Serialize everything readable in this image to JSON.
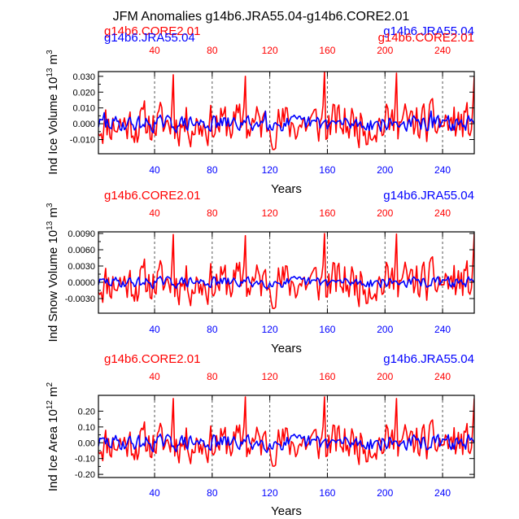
{
  "figure_title": "JFM Anomalies g14b6.JRA55.04-g14b6.CORE2.01",
  "colors": {
    "core": "#ff0000",
    "jra": "#0000ff",
    "axis": "#000000"
  },
  "chart_data": [
    {
      "type": "line",
      "ylabel": "Ind Ice Volume 10^13 m^3",
      "ylabel_parts": {
        "main": "Ind Ice Volume 10",
        "exp1": "13",
        "mid": " m",
        "exp2": "3"
      },
      "xlabel": "Years",
      "xlim": [
        1,
        262
      ],
      "ylim": [
        -0.019,
        0.033
      ],
      "yticks": [
        0.03,
        0.02,
        0.01,
        0.0,
        -0.01
      ],
      "ytick_labels": [
        "0.030",
        "0.020",
        "0.010",
        "0.000",
        "-0.010"
      ],
      "xticks_top": [
        40,
        80,
        120,
        160,
        200,
        240
      ],
      "xticks_top_labels": [
        "40",
        "80",
        "120",
        "160",
        "200",
        "240"
      ],
      "xticks_bottom": [
        40,
        80,
        120,
        160,
        200,
        240
      ],
      "xticks_bottom_labels": [
        "40",
        "80",
        "120",
        "160",
        "200",
        "240"
      ],
      "legend_left": [
        "g14b6.CORE2.01",
        "g14b6.JRA55.04"
      ],
      "legend_right": [
        "g14b6.JRA55.04",
        "g14b6.CORE2.01"
      ],
      "dashed_verticals": [
        40,
        80,
        120,
        160,
        200,
        240
      ],
      "series": [
        {
          "name": "g14b6.CORE2.01",
          "color": "#ff0000",
          "start": 1,
          "end": 262,
          "amplitude": 0.022,
          "seed": 11,
          "peaks": [
            [
              53,
              0.031
            ],
            [
              103,
              0.03
            ],
            [
              158,
              0.033
            ],
            [
              208,
              0.032
            ],
            [
              262,
              0.03
            ]
          ]
        },
        {
          "name": "g14b6.JRA55.04",
          "color": "#0000ff",
          "start": 1,
          "end": 262,
          "amplitude": 0.008,
          "seed": 29,
          "peaks": [
            [
              5,
              0.007
            ],
            [
              117,
              0.008
            ],
            [
              232,
              0.008
            ]
          ]
        }
      ]
    },
    {
      "type": "line",
      "ylabel": "Ind Snow Volume 10^13 m^3",
      "ylabel_parts": {
        "main": "Ind Snow Volume 10",
        "exp1": "13",
        "mid": " m",
        "exp2": "3"
      },
      "xlabel": "Years",
      "xlim": [
        1,
        262
      ],
      "ylim": [
        -0.0057,
        0.0093
      ],
      "yticks": [
        0.009,
        0.006,
        0.003,
        0.0,
        -0.003
      ],
      "ytick_labels": [
        "0.0090",
        "0.0060",
        "0.0030",
        "0.0000",
        "-0.0030"
      ],
      "xticks_top": [
        40,
        80,
        120,
        160,
        200,
        240
      ],
      "xticks_top_labels": [
        "40",
        "80",
        "120",
        "160",
        "200",
        "240"
      ],
      "xticks_bottom": [
        40,
        80,
        120,
        160,
        200,
        240
      ],
      "xticks_bottom_labels": [
        "40",
        "80",
        "120",
        "160",
        "200",
        "240"
      ],
      "legend_left": [
        "g14b6.CORE2.01"
      ],
      "legend_right": [
        "g14b6.JRA55.04"
      ],
      "dashed_verticals": [
        40,
        80,
        120,
        160,
        200,
        240
      ],
      "series": [
        {
          "name": "g14b6.CORE2.01",
          "color": "#ff0000",
          "start": 1,
          "end": 262,
          "amplitude": 0.0065,
          "seed": 11,
          "peaks": [
            [
              53,
              0.0088
            ],
            [
              103,
              0.0086
            ],
            [
              158,
              0.009
            ],
            [
              208,
              0.0089
            ],
            [
              262,
              0.009
            ]
          ]
        },
        {
          "name": "g14b6.JRA55.04",
          "color": "#0000ff",
          "start": 1,
          "end": 262,
          "amplitude": 0.0016,
          "seed": 29,
          "peaks": []
        }
      ]
    },
    {
      "type": "line",
      "ylabel": "Ind Ice Area 10^12 m^2",
      "ylabel_parts": {
        "main": "Ind Ice Area 10",
        "exp1": "12",
        "mid": " m",
        "exp2": "2"
      },
      "xlabel": "Years",
      "xlim": [
        1,
        262
      ],
      "ylim": [
        -0.22,
        0.3
      ],
      "yticks": [
        0.2,
        0.1,
        0.0,
        -0.1,
        -0.2
      ],
      "ytick_labels": [
        "0.20",
        "0.10",
        "0.00",
        "-0.10",
        "-0.20"
      ],
      "xticks_top": [
        40,
        80,
        120,
        160,
        200,
        240
      ],
      "xticks_top_labels": [
        "40",
        "80",
        "120",
        "160",
        "200",
        "240"
      ],
      "xticks_bottom": [
        40,
        80,
        120,
        160,
        200,
        240
      ],
      "xticks_bottom_labels": [
        "40",
        "80",
        "120",
        "160",
        "200",
        "240"
      ],
      "legend_left": [
        "g14b6.CORE2.01"
      ],
      "legend_right": [
        "g14b6.JRA55.04"
      ],
      "dashed_verticals": [
        40,
        80,
        120,
        160,
        200,
        240
      ],
      "series": [
        {
          "name": "g14b6.CORE2.01",
          "color": "#ff0000",
          "start": 1,
          "end": 262,
          "amplitude": 0.2,
          "seed": 11,
          "peaks": [
            [
              53,
              0.28
            ],
            [
              103,
              0.29
            ],
            [
              158,
              0.29
            ],
            [
              208,
              0.28
            ],
            [
              262,
              0.28
            ]
          ]
        },
        {
          "name": "g14b6.JRA55.04",
          "color": "#0000ff",
          "start": 1,
          "end": 262,
          "amplitude": 0.08,
          "seed": 29,
          "peaks": []
        }
      ]
    }
  ]
}
